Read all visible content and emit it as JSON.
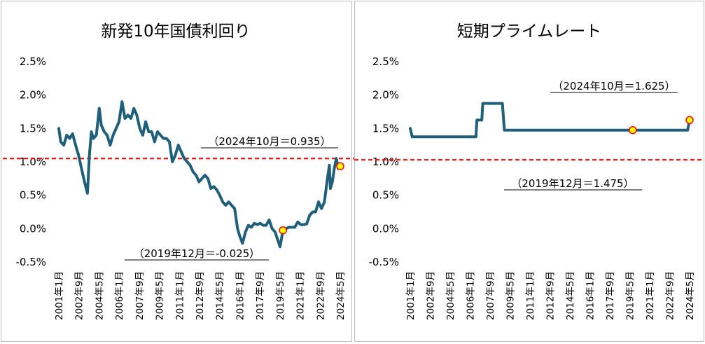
{
  "chart_data": [
    {
      "type": "line",
      "title": "新発10年国債利回り",
      "ylim": [
        -0.5,
        2.5
      ],
      "y_ticks": [
        "2.5%",
        "2.0%",
        "1.5%",
        "1.0%",
        "0.5%",
        "0.0%",
        "-0.5%"
      ],
      "x_ticks": [
        "2001年1月",
        "2002年9月",
        "2004年5月",
        "2006年1月",
        "2007年9月",
        "2009年5月",
        "2011年1月",
        "2012年9月",
        "2014年5月",
        "2016年1月",
        "2017年9月",
        "2019年5月",
        "2021年1月",
        "2022年9月",
        "2024年5月"
      ],
      "x_range": [
        "2001-01",
        "2024-10"
      ],
      "series": [
        {
          "color": "#1f5f7a",
          "points": [
            [
              "2001-01",
              1.5
            ],
            [
              "2001-03",
              1.3
            ],
            [
              "2001-06",
              1.25
            ],
            [
              "2001-09",
              1.4
            ],
            [
              "2001-12",
              1.35
            ],
            [
              "2002-03",
              1.42
            ],
            [
              "2002-06",
              1.25
            ],
            [
              "2002-09",
              1.1
            ],
            [
              "2002-12",
              0.9
            ],
            [
              "2003-03",
              0.7
            ],
            [
              "2003-06",
              0.53
            ],
            [
              "2003-08",
              1.1
            ],
            [
              "2003-10",
              1.45
            ],
            [
              "2003-12",
              1.35
            ],
            [
              "2004-03",
              1.4
            ],
            [
              "2004-06",
              1.8
            ],
            [
              "2004-08",
              1.55
            ],
            [
              "2004-11",
              1.45
            ],
            [
              "2005-02",
              1.4
            ],
            [
              "2005-05",
              1.25
            ],
            [
              "2005-08",
              1.4
            ],
            [
              "2005-11",
              1.5
            ],
            [
              "2006-02",
              1.6
            ],
            [
              "2006-05",
              1.9
            ],
            [
              "2006-08",
              1.65
            ],
            [
              "2006-11",
              1.7
            ],
            [
              "2007-02",
              1.65
            ],
            [
              "2007-05",
              1.8
            ],
            [
              "2007-08",
              1.7
            ],
            [
              "2007-11",
              1.5
            ],
            [
              "2008-02",
              1.4
            ],
            [
              "2008-05",
              1.6
            ],
            [
              "2008-08",
              1.45
            ],
            [
              "2008-11",
              1.45
            ],
            [
              "2009-02",
              1.3
            ],
            [
              "2009-05",
              1.45
            ],
            [
              "2009-08",
              1.4
            ],
            [
              "2009-11",
              1.35
            ],
            [
              "2010-02",
              1.35
            ],
            [
              "2010-05",
              1.3
            ],
            [
              "2010-08",
              1.0
            ],
            [
              "2010-11",
              1.1
            ],
            [
              "2011-02",
              1.25
            ],
            [
              "2011-05",
              1.15
            ],
            [
              "2011-08",
              1.05
            ],
            [
              "2011-11",
              1.0
            ],
            [
              "2012-02",
              0.95
            ],
            [
              "2012-05",
              0.85
            ],
            [
              "2012-08",
              0.8
            ],
            [
              "2012-11",
              0.7
            ],
            [
              "2013-02",
              0.75
            ],
            [
              "2013-05",
              0.8
            ],
            [
              "2013-08",
              0.75
            ],
            [
              "2013-11",
              0.6
            ],
            [
              "2014-02",
              0.63
            ],
            [
              "2014-05",
              0.58
            ],
            [
              "2014-08",
              0.5
            ],
            [
              "2014-11",
              0.4
            ],
            [
              "2015-02",
              0.35
            ],
            [
              "2015-05",
              0.4
            ],
            [
              "2015-08",
              0.35
            ],
            [
              "2015-11",
              0.3
            ],
            [
              "2016-02",
              0.0
            ],
            [
              "2016-04",
              -0.1
            ],
            [
              "2016-07",
              -0.22
            ],
            [
              "2016-10",
              -0.05
            ],
            [
              "2017-01",
              0.05
            ],
            [
              "2017-04",
              0.02
            ],
            [
              "2017-07",
              0.08
            ],
            [
              "2017-10",
              0.06
            ],
            [
              "2018-01",
              0.08
            ],
            [
              "2018-04",
              0.05
            ],
            [
              "2018-07",
              0.05
            ],
            [
              "2018-10",
              0.13
            ],
            [
              "2019-01",
              0.0
            ],
            [
              "2019-04",
              -0.05
            ],
            [
              "2019-07",
              -0.18
            ],
            [
              "2019-09",
              -0.27
            ],
            [
              "2019-12",
              -0.025
            ],
            [
              "2020-03",
              0.0
            ],
            [
              "2020-06",
              0.02
            ],
            [
              "2020-09",
              0.02
            ],
            [
              "2020-12",
              0.02
            ],
            [
              "2021-03",
              0.1
            ],
            [
              "2021-06",
              0.06
            ],
            [
              "2021-09",
              0.06
            ],
            [
              "2021-12",
              0.07
            ],
            [
              "2022-03",
              0.2
            ],
            [
              "2022-06",
              0.25
            ],
            [
              "2022-09",
              0.25
            ],
            [
              "2022-12",
              0.4
            ],
            [
              "2023-03",
              0.3
            ],
            [
              "2023-06",
              0.4
            ],
            [
              "2023-09",
              0.75
            ],
            [
              "2023-11",
              0.95
            ],
            [
              "2023-12",
              0.6
            ],
            [
              "2024-02",
              0.7
            ],
            [
              "2024-04",
              0.9
            ],
            [
              "2024-06",
              1.05
            ],
            [
              "2024-08",
              0.9
            ],
            [
              "2024-10",
              0.935
            ]
          ]
        }
      ],
      "reference_line": {
        "value": 1.05,
        "color": "#ff0000",
        "style": "dashed"
      },
      "markers": [
        {
          "x": "2019-12",
          "y": -0.025,
          "label": "（2019年12月＝-0.025）"
        },
        {
          "x": "2024-10",
          "y": 0.935,
          "label": "（2024年10月＝0.935）"
        }
      ],
      "grid": false
    },
    {
      "type": "line",
      "title": "短期プライムレート",
      "ylim": [
        -0.5,
        2.5
      ],
      "y_ticks": [
        "2.5%",
        "2.0%",
        "1.5%",
        "1.0%",
        "0.5%",
        "0.0%",
        "-0.5%"
      ],
      "x_ticks": [
        "2001年1月",
        "2002年9月",
        "2004年5月",
        "2006年1月",
        "2007年9月",
        "2009年5月",
        "2011年1月",
        "2012年9月",
        "2014年5月",
        "2016年1月",
        "2017年9月",
        "2019年5月",
        "2021年1月",
        "2022年9月",
        "2024年5月"
      ],
      "x_range": [
        "2001-01",
        "2024-10"
      ],
      "series": [
        {
          "color": "#1f5f7a",
          "points": [
            [
              "2001-01",
              1.5
            ],
            [
              "2001-03",
              1.375
            ],
            [
              "2006-08",
              1.375
            ],
            [
              "2006-09",
              1.625
            ],
            [
              "2007-02",
              1.625
            ],
            [
              "2007-03",
              1.875
            ],
            [
              "2008-11",
              1.875
            ],
            [
              "2009-01",
              1.475
            ],
            [
              "2024-08",
              1.475
            ],
            [
              "2024-10",
              1.625
            ]
          ]
        }
      ],
      "reference_line": {
        "value": 1.03,
        "color": "#ff0000",
        "style": "dashed"
      },
      "markers": [
        {
          "x": "2019-12",
          "y": 1.475,
          "label": "（2019年12月＝1.475）"
        },
        {
          "x": "2024-10",
          "y": 1.625,
          "label": "（2024年10月＝1.625）"
        }
      ],
      "grid": false
    }
  ]
}
